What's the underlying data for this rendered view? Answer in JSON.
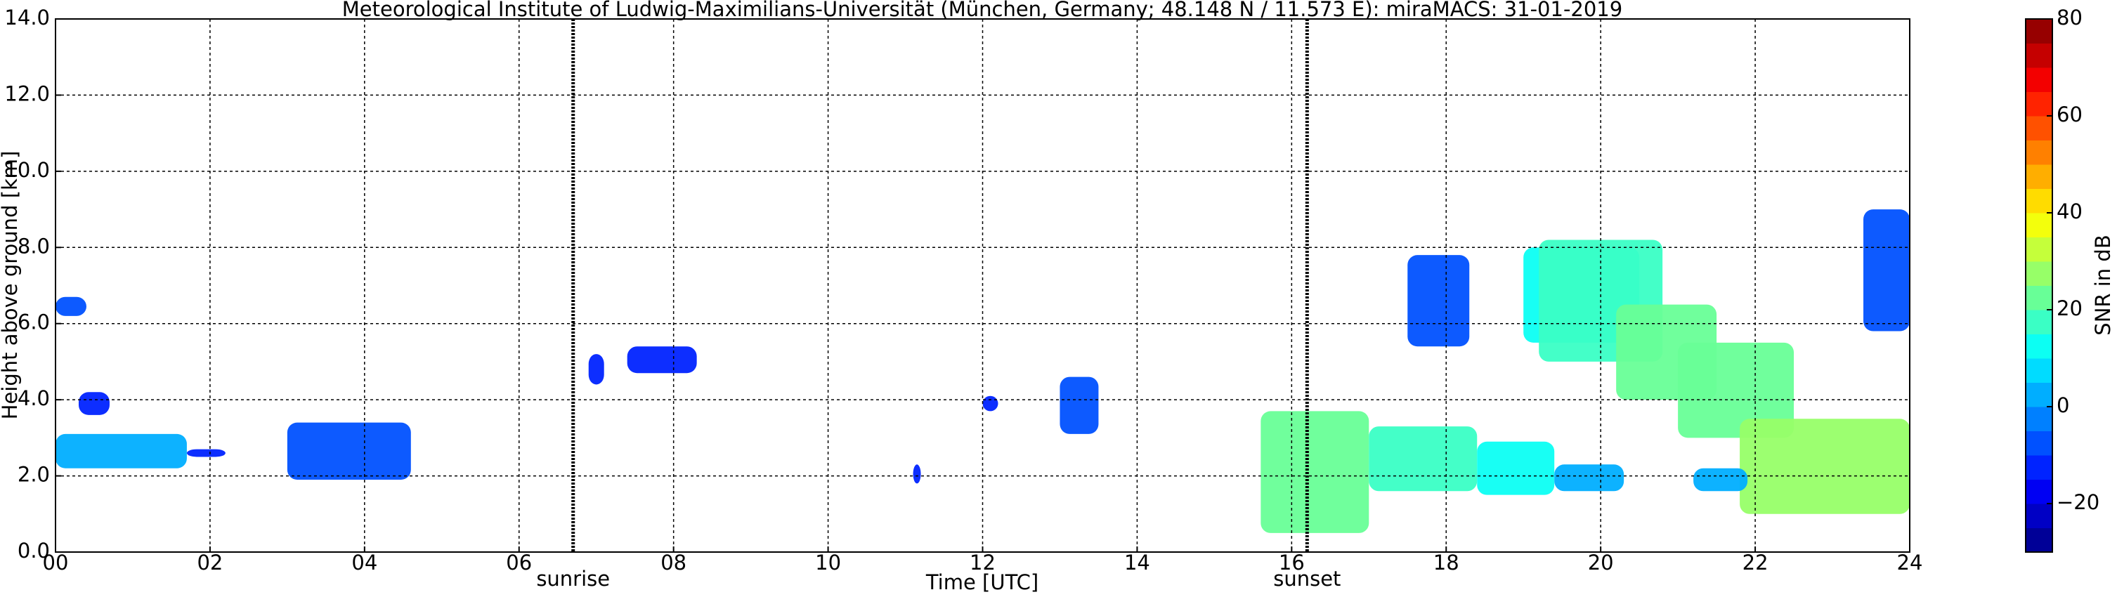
{
  "chart_data": {
    "type": "heatmap",
    "title": "Meteorological Institute of Ludwig-Maximilians-Universität (München, Germany; 48.148 N / 11.573 E):    miraMACS: 31-01-2019",
    "x_label": "Time [UTC]",
    "y_label": "Height above ground [km]",
    "xlim": [
      0,
      24
    ],
    "ylim": [
      0,
      14
    ],
    "xticks": [
      {
        "value": 0,
        "label": "00"
      },
      {
        "value": 2,
        "label": "02"
      },
      {
        "value": 4,
        "label": "04"
      },
      {
        "value": 6,
        "label": "06"
      },
      {
        "value": 8,
        "label": "08"
      },
      {
        "value": 10,
        "label": "10"
      },
      {
        "value": 12,
        "label": "12"
      },
      {
        "value": 14,
        "label": "14"
      },
      {
        "value": 16,
        "label": "16"
      },
      {
        "value": 18,
        "label": "18"
      },
      {
        "value": 20,
        "label": "20"
      },
      {
        "value": 22,
        "label": "22"
      },
      {
        "value": 24,
        "label": "24"
      }
    ],
    "yticks": [
      {
        "value": 0,
        "label": "0.0"
      },
      {
        "value": 2,
        "label": "2.0"
      },
      {
        "value": 4,
        "label": "4.0"
      },
      {
        "value": 6,
        "label": "6.0"
      },
      {
        "value": 8,
        "label": "8.0"
      },
      {
        "value": 10,
        "label": "10.0"
      },
      {
        "value": 12,
        "label": "12.0"
      },
      {
        "value": 14,
        "label": "14.0"
      }
    ],
    "grid": true,
    "annotations": [
      {
        "text": "sunrise",
        "x": 6.7
      },
      {
        "text": "sunset",
        "x": 16.2
      }
    ],
    "colorbar": {
      "label": "SNR in dB",
      "colormap": "jet",
      "levels": 22,
      "lim": [
        -30,
        80
      ],
      "ticks": [
        {
          "value": -20,
          "label": "−20"
        },
        0,
        20,
        40,
        60,
        80
      ]
    },
    "cells": [
      {
        "x0": 0.0,
        "x1": 0.4,
        "y0": 6.2,
        "y1": 6.7,
        "value": -10
      },
      {
        "x0": 0.0,
        "x1": 1.7,
        "y0": 2.2,
        "y1": 3.1,
        "value": 0
      },
      {
        "x0": 0.3,
        "x1": 0.7,
        "y0": 3.6,
        "y1": 4.2,
        "value": -15
      },
      {
        "x0": 1.7,
        "x1": 2.2,
        "y0": 2.5,
        "y1": 2.7,
        "value": -15
      },
      {
        "x0": 3.0,
        "x1": 4.6,
        "y0": 1.9,
        "y1": 3.4,
        "value": -10
      },
      {
        "x0": 6.9,
        "x1": 7.1,
        "y0": 4.4,
        "y1": 5.2,
        "value": -15
      },
      {
        "x0": 7.4,
        "x1": 8.3,
        "y0": 4.7,
        "y1": 5.4,
        "value": -15
      },
      {
        "x0": 11.1,
        "x1": 11.2,
        "y0": 1.8,
        "y1": 2.3,
        "value": -15
      },
      {
        "x0": 12.0,
        "x1": 12.2,
        "y0": 3.7,
        "y1": 4.1,
        "value": -15
      },
      {
        "x0": 13.0,
        "x1": 13.5,
        "y0": 3.1,
        "y1": 4.6,
        "value": -10
      },
      {
        "x0": 15.6,
        "x1": 17.0,
        "y0": 0.5,
        "y1": 3.7,
        "value": 20
      },
      {
        "x0": 17.0,
        "x1": 18.4,
        "y0": 1.6,
        "y1": 3.3,
        "value": 15
      },
      {
        "x0": 18.4,
        "x1": 19.4,
        "y0": 1.5,
        "y1": 2.9,
        "value": 10
      },
      {
        "x0": 19.4,
        "x1": 20.3,
        "y0": 1.6,
        "y1": 2.3,
        "value": 0
      },
      {
        "x0": 17.5,
        "x1": 18.3,
        "y0": 5.4,
        "y1": 7.8,
        "value": -10
      },
      {
        "x0": 19.0,
        "x1": 20.5,
        "y0": 5.5,
        "y1": 8.0,
        "value": 10
      },
      {
        "x0": 19.2,
        "x1": 20.8,
        "y0": 5.0,
        "y1": 8.2,
        "value": 15
      },
      {
        "x0": 20.2,
        "x1": 21.5,
        "y0": 4.0,
        "y1": 6.5,
        "value": 20
      },
      {
        "x0": 21.0,
        "x1": 22.5,
        "y0": 3.0,
        "y1": 5.5,
        "value": 20
      },
      {
        "x0": 21.8,
        "x1": 24.0,
        "y0": 1.0,
        "y1": 3.5,
        "value": 25
      },
      {
        "x0": 21.2,
        "x1": 21.9,
        "y0": 1.6,
        "y1": 2.2,
        "value": 0
      },
      {
        "x0": 23.4,
        "x1": 24.0,
        "y0": 5.8,
        "y1": 9.0,
        "value": -10
      }
    ]
  }
}
